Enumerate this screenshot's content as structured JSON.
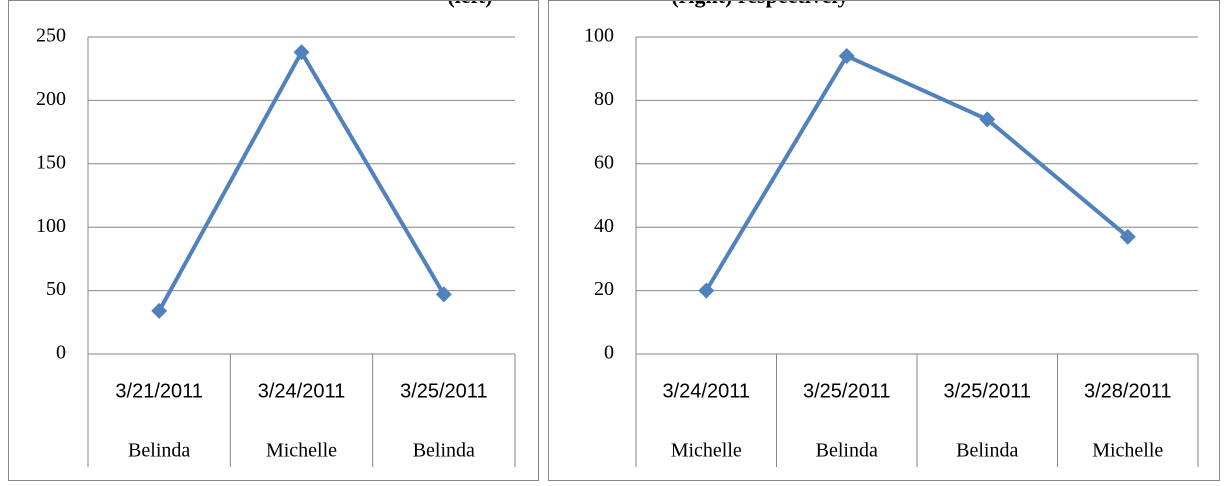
{
  "header": {
    "left": "(left)",
    "right": "(right) respectively"
  },
  "chart_data": [
    {
      "type": "line",
      "categories": [
        "3/21/2011",
        "3/24/2011",
        "3/25/2011"
      ],
      "subcategories": [
        "Belinda",
        "Michelle",
        "Belinda"
      ],
      "values": [
        34,
        238,
        47
      ],
      "color": "#4f81bd",
      "ylim": [
        0,
        250
      ],
      "yticks": [
        0,
        50,
        100,
        150,
        200,
        250
      ],
      "grid": true
    },
    {
      "type": "line",
      "categories": [
        "3/24/2011",
        "3/25/2011",
        "3/25/2011",
        "3/28/2011"
      ],
      "subcategories": [
        "Michelle",
        "Belinda",
        "Belinda",
        "Michelle"
      ],
      "values": [
        20,
        94,
        74,
        37
      ],
      "color": "#4f81bd",
      "ylim": [
        0,
        100
      ],
      "yticks": [
        0,
        20,
        40,
        60,
        80,
        100
      ],
      "grid": true
    }
  ]
}
